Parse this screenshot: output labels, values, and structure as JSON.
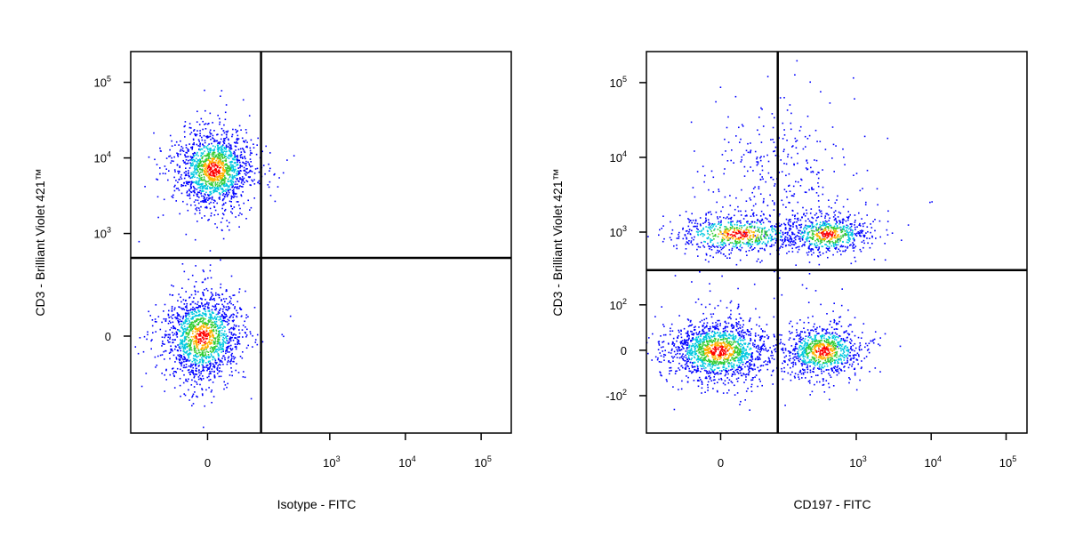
{
  "chart_data": [
    {
      "type": "scatter",
      "scale": "biexponential",
      "x_label": "Isotype - FITC",
      "y_label": "CD3 - Brilliant Violet 421™",
      "xlim": [
        -250,
        250000
      ],
      "ylim": [
        -840,
        255000
      ],
      "xticks": [
        0,
        {
          "value": 1000,
          "label": "10",
          "sup": "3"
        },
        {
          "value": 10000,
          "label": "10",
          "sup": "4"
        },
        {
          "value": 100000,
          "label": "10",
          "sup": "5"
        }
      ],
      "yticks": [
        0,
        {
          "value": 1000,
          "label": "10",
          "sup": "3"
        },
        {
          "value": 10000,
          "label": "10",
          "sup": "4"
        },
        {
          "value": 100000,
          "label": "10",
          "sup": "5"
        }
      ],
      "gates": {
        "x": 119,
        "y": 473
      }
    },
    {
      "type": "scatter",
      "scale": "biexponential",
      "x_label": "CD197 - FITC",
      "y_label": "CD3 - Brilliant Violet 421™",
      "xlim": [
        -150,
        190000
      ],
      "ylim": [
        -335,
        260000
      ],
      "xticks": [
        0,
        {
          "value": 1000,
          "label": "10",
          "sup": "3"
        },
        {
          "value": 10000,
          "label": "10",
          "sup": "4"
        },
        {
          "value": 100000,
          "label": "10",
          "sup": "5"
        }
      ],
      "yticks": [
        {
          "value": -100,
          "label": "-10",
          "sup": "2"
        },
        0,
        {
          "value": 100,
          "label": "10",
          "sup": "2"
        },
        {
          "value": 1000,
          "label": "10",
          "sup": "3"
        },
        {
          "value": 10000,
          "label": "10",
          "sup": "4"
        },
        {
          "value": 100000,
          "label": "10",
          "sup": "5"
        }
      ],
      "gates": {
        "x": 87,
        "y": 308
      }
    }
  ]
}
